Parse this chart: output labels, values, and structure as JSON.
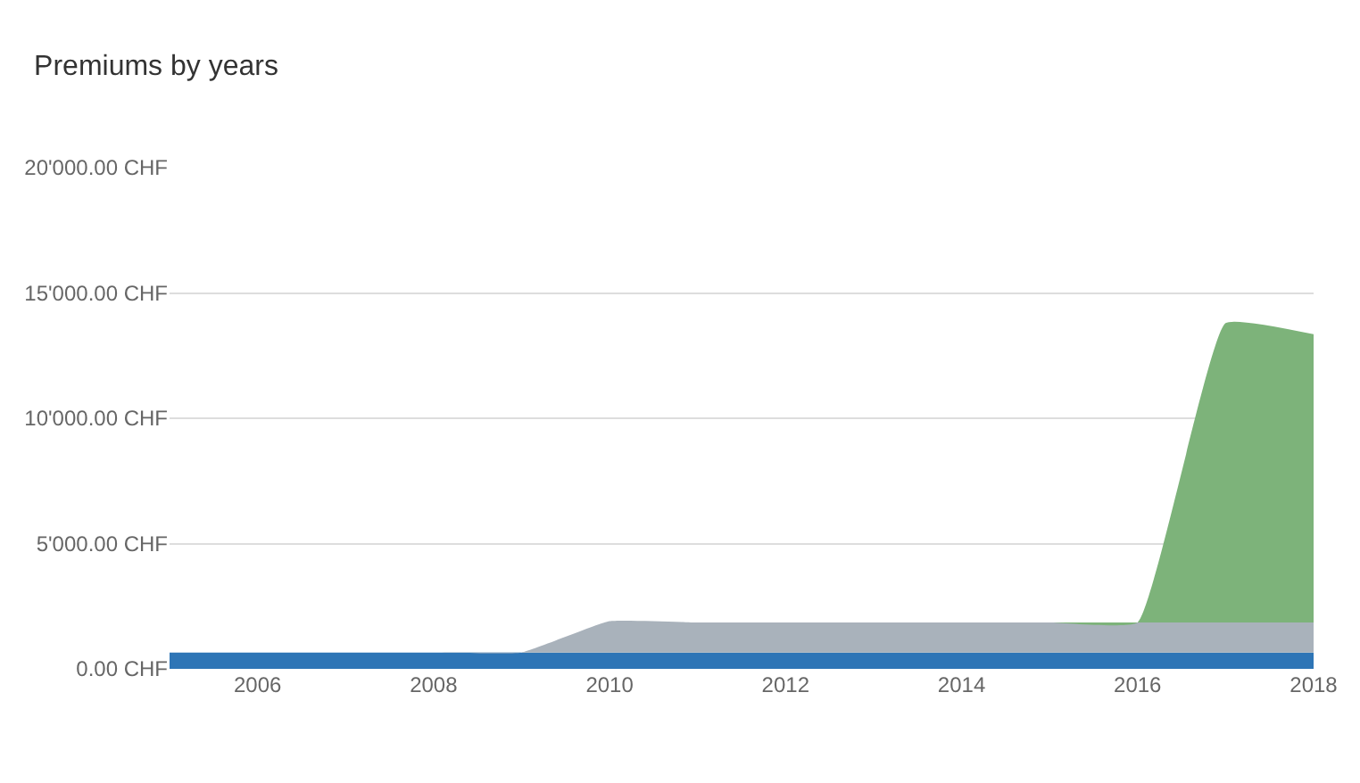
{
  "chart_data": {
    "type": "area",
    "title": "Premiums by years",
    "stacked": true,
    "x": [
      2005,
      2006,
      2007,
      2008,
      2009,
      2010,
      2011,
      2012,
      2013,
      2014,
      2015,
      2016,
      2017,
      2018
    ],
    "series": [
      {
        "color": "#2e75b6",
        "values": [
          650,
          650,
          650,
          650,
          650,
          650,
          650,
          650,
          650,
          650,
          650,
          650,
          650,
          650
        ]
      },
      {
        "color": "#a9b2bb",
        "values": [
          0,
          0,
          0,
          0,
          0,
          1250,
          1200,
          1200,
          1200,
          1200,
          1200,
          1200,
          1200,
          1200
        ]
      },
      {
        "color": "#7db37a",
        "values": [
          0,
          0,
          0,
          0,
          0,
          0,
          0,
          0,
          0,
          0,
          0,
          0,
          11950,
          11500
        ]
      }
    ],
    "xlim": [
      2005,
      2018
    ],
    "xticks": [
      2006,
      2008,
      2010,
      2012,
      2014,
      2016,
      2018
    ],
    "ylim": [
      0,
      20000
    ],
    "yticks": [
      {
        "value": 0,
        "label": "0.00 CHF"
      },
      {
        "value": 5000,
        "label": "5'000.00 CHF"
      },
      {
        "value": 10000,
        "label": "10'000.00 CHF"
      },
      {
        "value": 15000,
        "label": "15'000.00 CHF"
      },
      {
        "value": 20000,
        "label": "20'000.00 CHF"
      }
    ],
    "grid": "y"
  }
}
